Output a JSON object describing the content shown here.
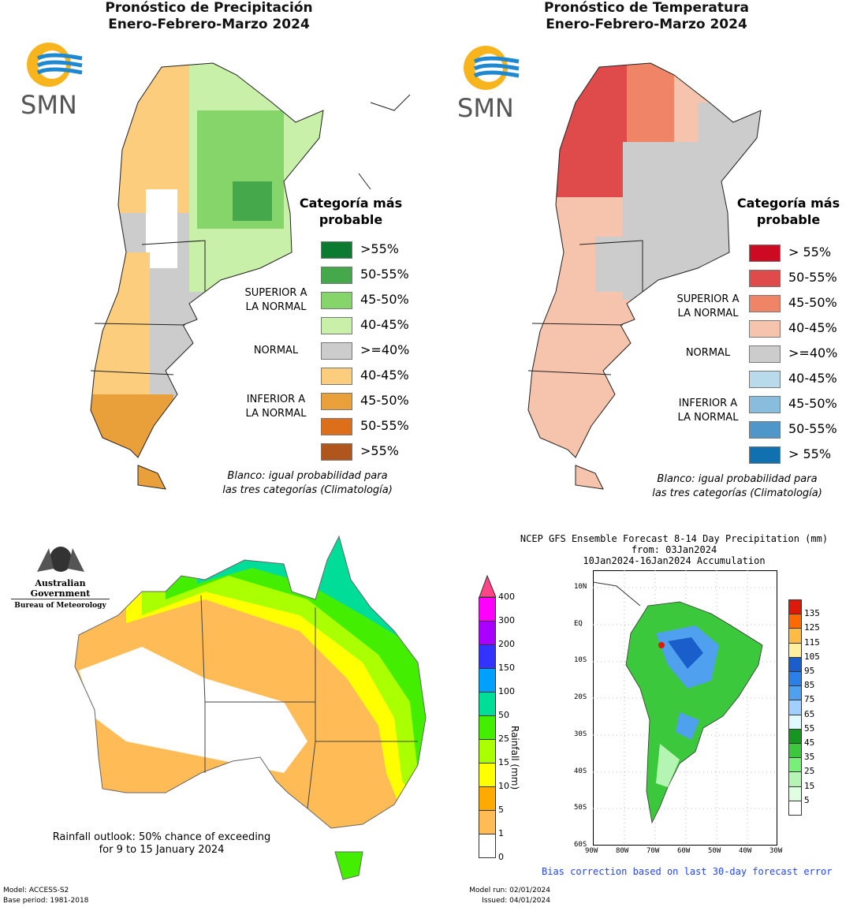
{
  "precip_ar": {
    "title_line1": "Pronóstico de Precipitación",
    "title_line2": "Enero-Febrero-Marzo 2024",
    "logo": "SMN",
    "legend_title_line1": "Categoría más",
    "legend_title_line2": "probable",
    "legend": [
      {
        "label": ">55%",
        "color": "#0c7a30"
      },
      {
        "label": "50-55%",
        "color": "#45a84a"
      },
      {
        "label": "45-50%",
        "color": "#86d56a"
      },
      {
        "label": "40-45%",
        "color": "#c9f0a8"
      },
      {
        "label": ">=40%",
        "color": "#cccccc"
      },
      {
        "label": "40-45%",
        "color": "#fccd7c"
      },
      {
        "label": "45-50%",
        "color": "#e9a03a"
      },
      {
        "label": "50-55%",
        "color": "#dd6e1a"
      },
      {
        "label": ">55%",
        "color": "#b0561c"
      }
    ],
    "group_above_1": "SUPERIOR A",
    "group_above_2": "LA NORMAL",
    "group_normal": "NORMAL",
    "group_below_1": "INFERIOR A",
    "group_below_2": "LA NORMAL",
    "note_line1": "Blanco: igual probabilidad para",
    "note_line2": "las tres categorías (Climatología)"
  },
  "temp_ar": {
    "title_line1": "Pronóstico de Temperatura",
    "title_line2": "Enero-Febrero-Marzo 2024",
    "logo": "SMN",
    "legend_title_line1": "Categoría más",
    "legend_title_line2": "probable",
    "legend": [
      {
        "label": "> 55%",
        "color": "#cc0a22"
      },
      {
        "label": "50-55%",
        "color": "#df4a4a"
      },
      {
        "label": "45-50%",
        "color": "#f08466"
      },
      {
        "label": "40-45%",
        "color": "#f6c3ac"
      },
      {
        "label": ">=40%",
        "color": "#cccccc"
      },
      {
        "label": "40-45%",
        "color": "#b8daea"
      },
      {
        "label": "45-50%",
        "color": "#88bddd"
      },
      {
        "label": "50-55%",
        "color": "#4f97c8"
      },
      {
        "label": "> 55%",
        "color": "#1070b0"
      }
    ],
    "group_above_1": "SUPERIOR A",
    "group_above_2": "LA NORMAL",
    "group_normal": "NORMAL",
    "group_below_1": "INFERIOR A",
    "group_below_2": "LA NORMAL",
    "note_line1": "Blanco: igual probabilidad para",
    "note_line2": "las tres categorías (Climatología)"
  },
  "australia": {
    "gov_line1": "Australian Government",
    "gov_line2": "Bureau of Meteorology",
    "caption_line1": "Rainfall outlook: 50% chance of exceeding",
    "caption_line2": "for 9 to 15 January 2024",
    "colorbar_label": "Rainfall (mm)",
    "colorbar_ticks": [
      "400",
      "300",
      "200",
      "150",
      "100",
      "50",
      "25",
      "15",
      "10",
      "5",
      "1",
      "0"
    ],
    "colorbar_colors": [
      "#ff00ff",
      "#aa00ff",
      "#3333ff",
      "#00a0ff",
      "#00dd99",
      "#44ee00",
      "#aaff00",
      "#ffff00",
      "#ffaa00",
      "#ffbb55",
      "#ffffff"
    ],
    "arrow_color": "#ff4488",
    "model": "Model: ACCESS-S2",
    "base_period": "Base period: 1981-2018"
  },
  "ncep": {
    "title_line1": "NCEP GFS Ensemble Forecast 8-14 Day Precipitation (mm)",
    "title_line2": "from: 03Jan2024",
    "title_line3": "10Jan2024-16Jan2024 Accumulation",
    "lat_labels": [
      "10N",
      "EQ",
      "10S",
      "20S",
      "30S",
      "40S",
      "50S",
      "60S"
    ],
    "lon_labels": [
      "90W",
      "80W",
      "70W",
      "60W",
      "50W",
      "40W",
      "30W"
    ],
    "colorbar_ticks": [
      "135",
      "125",
      "115",
      "105",
      "95",
      "85",
      "75",
      "65",
      "55",
      "45",
      "35",
      "25",
      "15",
      "5"
    ],
    "colorbar_colors": [
      "#dd1a0a",
      "#ff6a00",
      "#ffbb44",
      "#fff0a0",
      "#1a5ecc",
      "#2a80e8",
      "#50a0f0",
      "#a0d0ff",
      "#e0faff",
      "#149620",
      "#3cc83c",
      "#78ef78",
      "#b4f5b4",
      "#e0ffe0",
      "#ffffff"
    ],
    "note": "Bias correction based on last 30-day forecast error",
    "model_run": "Model run: 02/01/2024",
    "issued": "Issued: 04/01/2024"
  }
}
